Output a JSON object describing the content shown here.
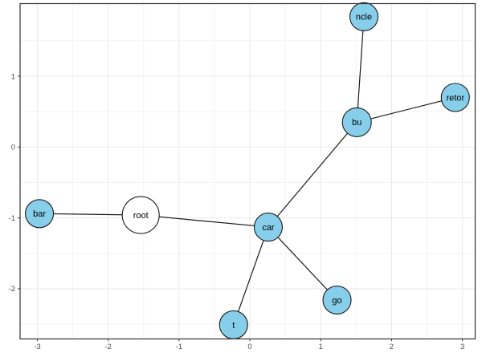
{
  "chart_data": {
    "type": "scatter",
    "subtype": "network-graph-trie",
    "title": "",
    "xlabel": "",
    "ylabel": "",
    "xlim": [
      -3.243,
      3.18
    ],
    "ylim": [
      -2.709,
      2.025
    ],
    "x_ticks": [
      -3,
      -2,
      -1,
      0,
      1,
      2,
      3
    ],
    "y_ticks": [
      -2,
      -1,
      0,
      1
    ],
    "grid": "major+minor",
    "legend": "none",
    "nodes": [
      {
        "id": "root",
        "label": "root",
        "x": -1.54,
        "y": -0.96,
        "fill": "#ffffff",
        "r": 23
      },
      {
        "id": "bar",
        "label": "bar",
        "x": -2.97,
        "y": -0.94,
        "fill": "#87CEEB",
        "r": 17.5
      },
      {
        "id": "car",
        "label": "car",
        "x": 0.26,
        "y": -1.13,
        "fill": "#87CEEB",
        "r": 17.5
      },
      {
        "id": "t",
        "label": "t",
        "x": -0.23,
        "y": -2.51,
        "fill": "#87CEEB",
        "r": 17.5
      },
      {
        "id": "go",
        "label": "go",
        "x": 1.23,
        "y": -2.16,
        "fill": "#87CEEB",
        "r": 17.5
      },
      {
        "id": "bu",
        "label": "bu",
        "x": 1.51,
        "y": 0.35,
        "fill": "#87CEEB",
        "r": 18
      },
      {
        "id": "ncle",
        "label": "ncle",
        "x": 1.61,
        "y": 1.84,
        "fill": "#87CEEB",
        "r": 17.5
      },
      {
        "id": "retor",
        "label": "retor",
        "x": 2.9,
        "y": 0.7,
        "fill": "#87CEEB",
        "r": 17.5
      }
    ],
    "edges": [
      [
        "root",
        "bar"
      ],
      [
        "root",
        "car"
      ],
      [
        "car",
        "bu"
      ],
      [
        "car",
        "t"
      ],
      [
        "car",
        "go"
      ],
      [
        "bu",
        "ncle"
      ],
      [
        "bu",
        "retor"
      ]
    ],
    "colors": {
      "node_fill_default": "#87CEEB",
      "node_fill_root": "#ffffff",
      "node_stroke": "#1a1a1a",
      "edge_stroke": "#1a1a1a",
      "panel_border": "#333333",
      "grid_major": "#e9e9e9",
      "grid_minor": "#f3f3f3",
      "tick_label": "#4d4d4d",
      "background": "#ffffff"
    }
  }
}
